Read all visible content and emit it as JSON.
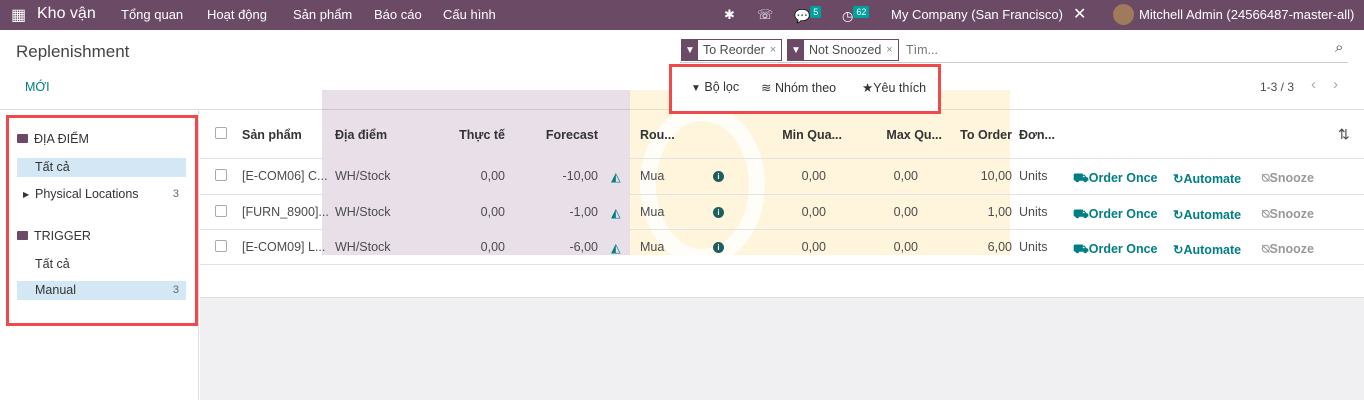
{
  "nav": {
    "app": "Kho vận",
    "menu": [
      "Tổng quan",
      "Hoạt động",
      "Sản phẩm",
      "Báo cáo",
      "Cấu hình"
    ],
    "messages": "5",
    "activities": "62",
    "company": "My Company (San Francisco)",
    "user": "Mitchell Admin (24566487-master-all)"
  },
  "page": {
    "title": "Replenishment",
    "new": "MỚI",
    "pager": "1-3 / 3"
  },
  "search": {
    "facets": [
      "To Reorder",
      "Not Snoozed"
    ],
    "placeholder": "Tìm..."
  },
  "filters": {
    "filter": "Bộ lọc",
    "group": "Nhóm theo",
    "fav": "Yêu thích"
  },
  "sidebar": {
    "loc_head": "ĐỊA ĐIỂM",
    "loc_all": "Tất cả",
    "loc_phys": "Physical Locations",
    "loc_phys_count": "3",
    "trig_head": "TRIGGER",
    "trig_all": "Tất cả",
    "trig_manual": "Manual",
    "trig_manual_count": "3"
  },
  "table": {
    "headers": [
      "Sản phẩm",
      "Địa điểm",
      "Thực tế",
      "Forecast",
      "Rou...",
      "Min Qua...",
      "Max Qu...",
      "To Order",
      "Đơn..."
    ],
    "rows": [
      {
        "product": "[E-COM06] C...",
        "location": "WH/Stock",
        "onhand": "0,00",
        "forecast": "-10,00",
        "route": "Mua",
        "min": "0,00",
        "max": "0,00",
        "order": "10,00",
        "uom": "Units"
      },
      {
        "product": "[FURN_8900]...",
        "location": "WH/Stock",
        "onhand": "0,00",
        "forecast": "-1,00",
        "route": "Mua",
        "min": "0,00",
        "max": "0,00",
        "order": "1,00",
        "uom": "Units"
      },
      {
        "product": "[E-COM09] L...",
        "location": "WH/Stock",
        "onhand": "0,00",
        "forecast": "-6,00",
        "route": "Mua",
        "min": "0,00",
        "max": "0,00",
        "order": "6,00",
        "uom": "Units"
      }
    ],
    "actions": {
      "order_once": "Order Once",
      "automate": "Automate",
      "snooze": "Snooze"
    }
  },
  "watermark": "ERPOne",
  "colors": {
    "brand": "#6b4a66",
    "accent": "#017e84",
    "highlight": "#f0494b"
  }
}
